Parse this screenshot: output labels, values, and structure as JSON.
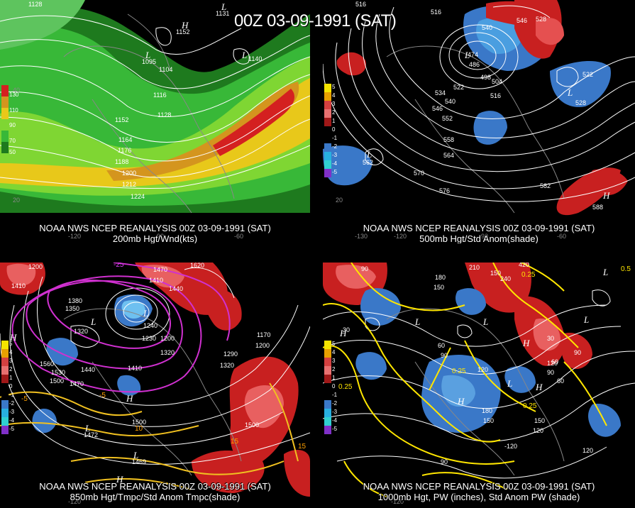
{
  "title": "00Z 03-09-1991 (SAT)",
  "panels": {
    "p1": {
      "caption_line1": "NOAA NWS NCEP REANALYSIS 00Z 03-09-1991 (SAT)",
      "caption_line2": "200mb Hgt/Wnd(kts)",
      "colorbar": [
        "130",
        "110",
        "90",
        "70",
        "50"
      ],
      "contour_labels": [
        "1128",
        "1131",
        "1152",
        "1095",
        "1104",
        "1140",
        "1116",
        "1128",
        "1152",
        "1164",
        "1176",
        "1188",
        "1200",
        "1212",
        "1224"
      ],
      "lon_labels": [
        "-120",
        "-90",
        "-60"
      ],
      "lat_labels": [
        "20",
        "40"
      ]
    },
    "p2": {
      "caption_line1": "NOAA NWS NCEP REANALYSIS 00Z 03-09-1991 (SAT)",
      "caption_line2": "500mb Hgt/Std Anom(shade)",
      "colorbar": [
        "5",
        "4",
        "3",
        "2",
        "1",
        "0",
        "-1",
        "-2",
        "-3",
        "-4",
        "-5"
      ],
      "contour_labels": [
        "516",
        "516",
        "540",
        "546",
        "528",
        "474",
        "486",
        "498",
        "504",
        "522",
        "534",
        "540",
        "516",
        "546",
        "552",
        "558",
        "564",
        "570",
        "576",
        "522",
        "528",
        "582",
        "588",
        "562"
      ],
      "lon_labels": [
        "-130",
        "-120",
        "-90",
        "-60"
      ],
      "lat_labels": [
        "20"
      ]
    },
    "p3": {
      "caption_line1": "NOAA NWS NCEP REANALYSIS 00Z 03-09-1991 (SAT)",
      "caption_line2": "850mb Hgt/Tmpc/Std Anom Tmpc(shade)",
      "colorbar": [
        "5",
        "4",
        "3",
        "2",
        "1",
        "0",
        "-1",
        "-2",
        "-3",
        "-4",
        "-5"
      ],
      "contour_labels": [
        "1200",
        "1410",
        "1380",
        "1350",
        "1320",
        "1560",
        "1530",
        "1500",
        "1440",
        "1470",
        "1410",
        "1470",
        "1410",
        "1620",
        "1440",
        "1170",
        "1230",
        "1200",
        "1240",
        "1320",
        "1290",
        "1320",
        "1200",
        "1500",
        "1500",
        "1472",
        "1469"
      ],
      "temp_labels": [
        "-25",
        "-5",
        "10",
        "15",
        "15",
        "-5"
      ],
      "lon_labels": [
        "-120"
      ],
      "lat_labels": []
    },
    "p4": {
      "caption_line1": "NOAA NWS NCEP REANALYSIS 00Z 03-09-1991 (SAT)",
      "caption_line2": "1000mb Hgt, PW (inches), Std Anom PW (shade)",
      "colorbar": [
        "5",
        "4",
        "3",
        "2",
        "1",
        "0",
        "-1",
        "-2",
        "-3",
        "-4",
        "-5"
      ],
      "contour_labels": [
        "90",
        "180",
        "150",
        "210",
        "240",
        "420",
        "150",
        "60",
        "90",
        "120",
        "30",
        "90",
        "120",
        "180",
        "150",
        "150",
        "120",
        "120",
        "90",
        "60",
        "30",
        "60",
        "90",
        "-120"
      ],
      "pw_labels": [
        "0.25",
        "0.5",
        "0.25",
        "0.25",
        "0.25"
      ],
      "lon_labels": [
        "-120"
      ],
      "lat_labels": []
    }
  },
  "symbols": {
    "high": "H",
    "low": "L"
  }
}
